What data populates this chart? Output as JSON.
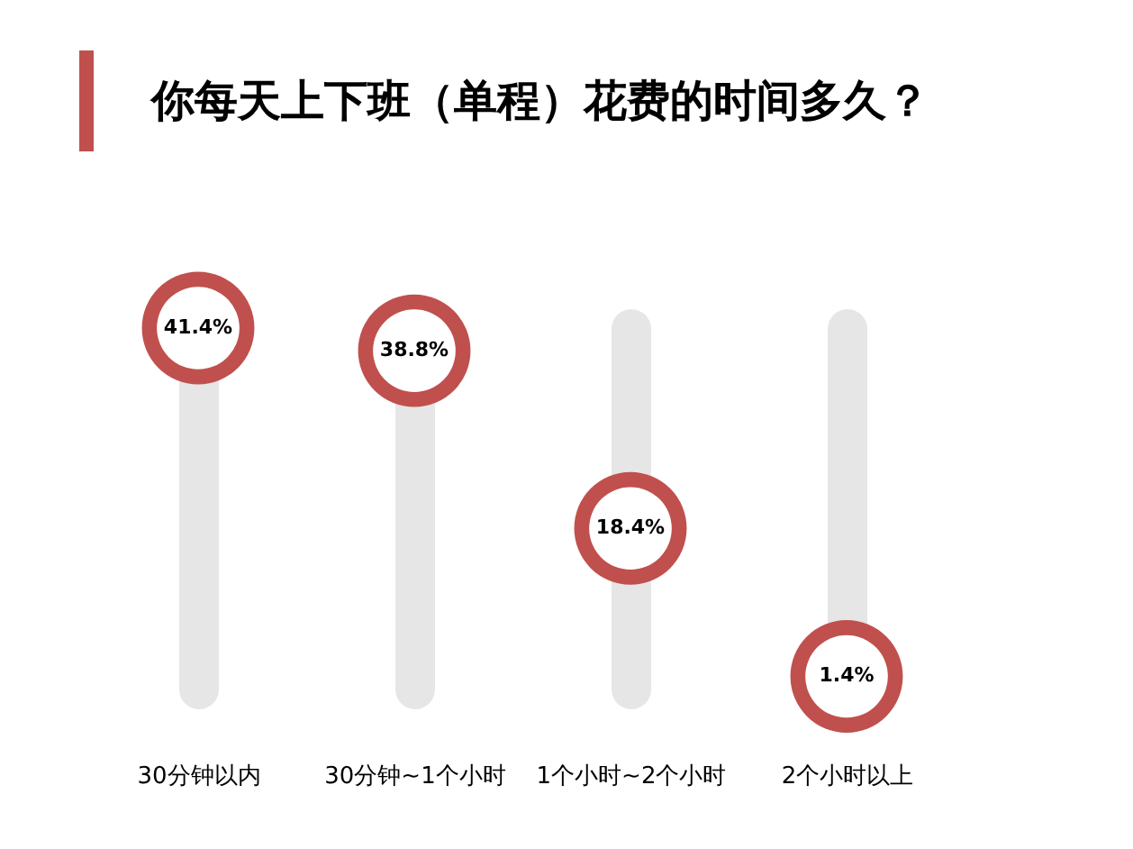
{
  "chart_data": {
    "type": "scatter",
    "title": "你每天上下班（单程）花费的时间多久？",
    "categories": [
      "30分钟以内",
      "30分钟~1个小时",
      "1个小时~2个小时",
      "2个小时以上"
    ],
    "values": [
      41.4,
      38.8,
      18.4,
      1.4
    ],
    "value_labels": [
      "41.4%",
      "38.8%",
      "18.4%",
      "1.4%"
    ],
    "color": "#c0504d",
    "grid": "x"
  }
}
